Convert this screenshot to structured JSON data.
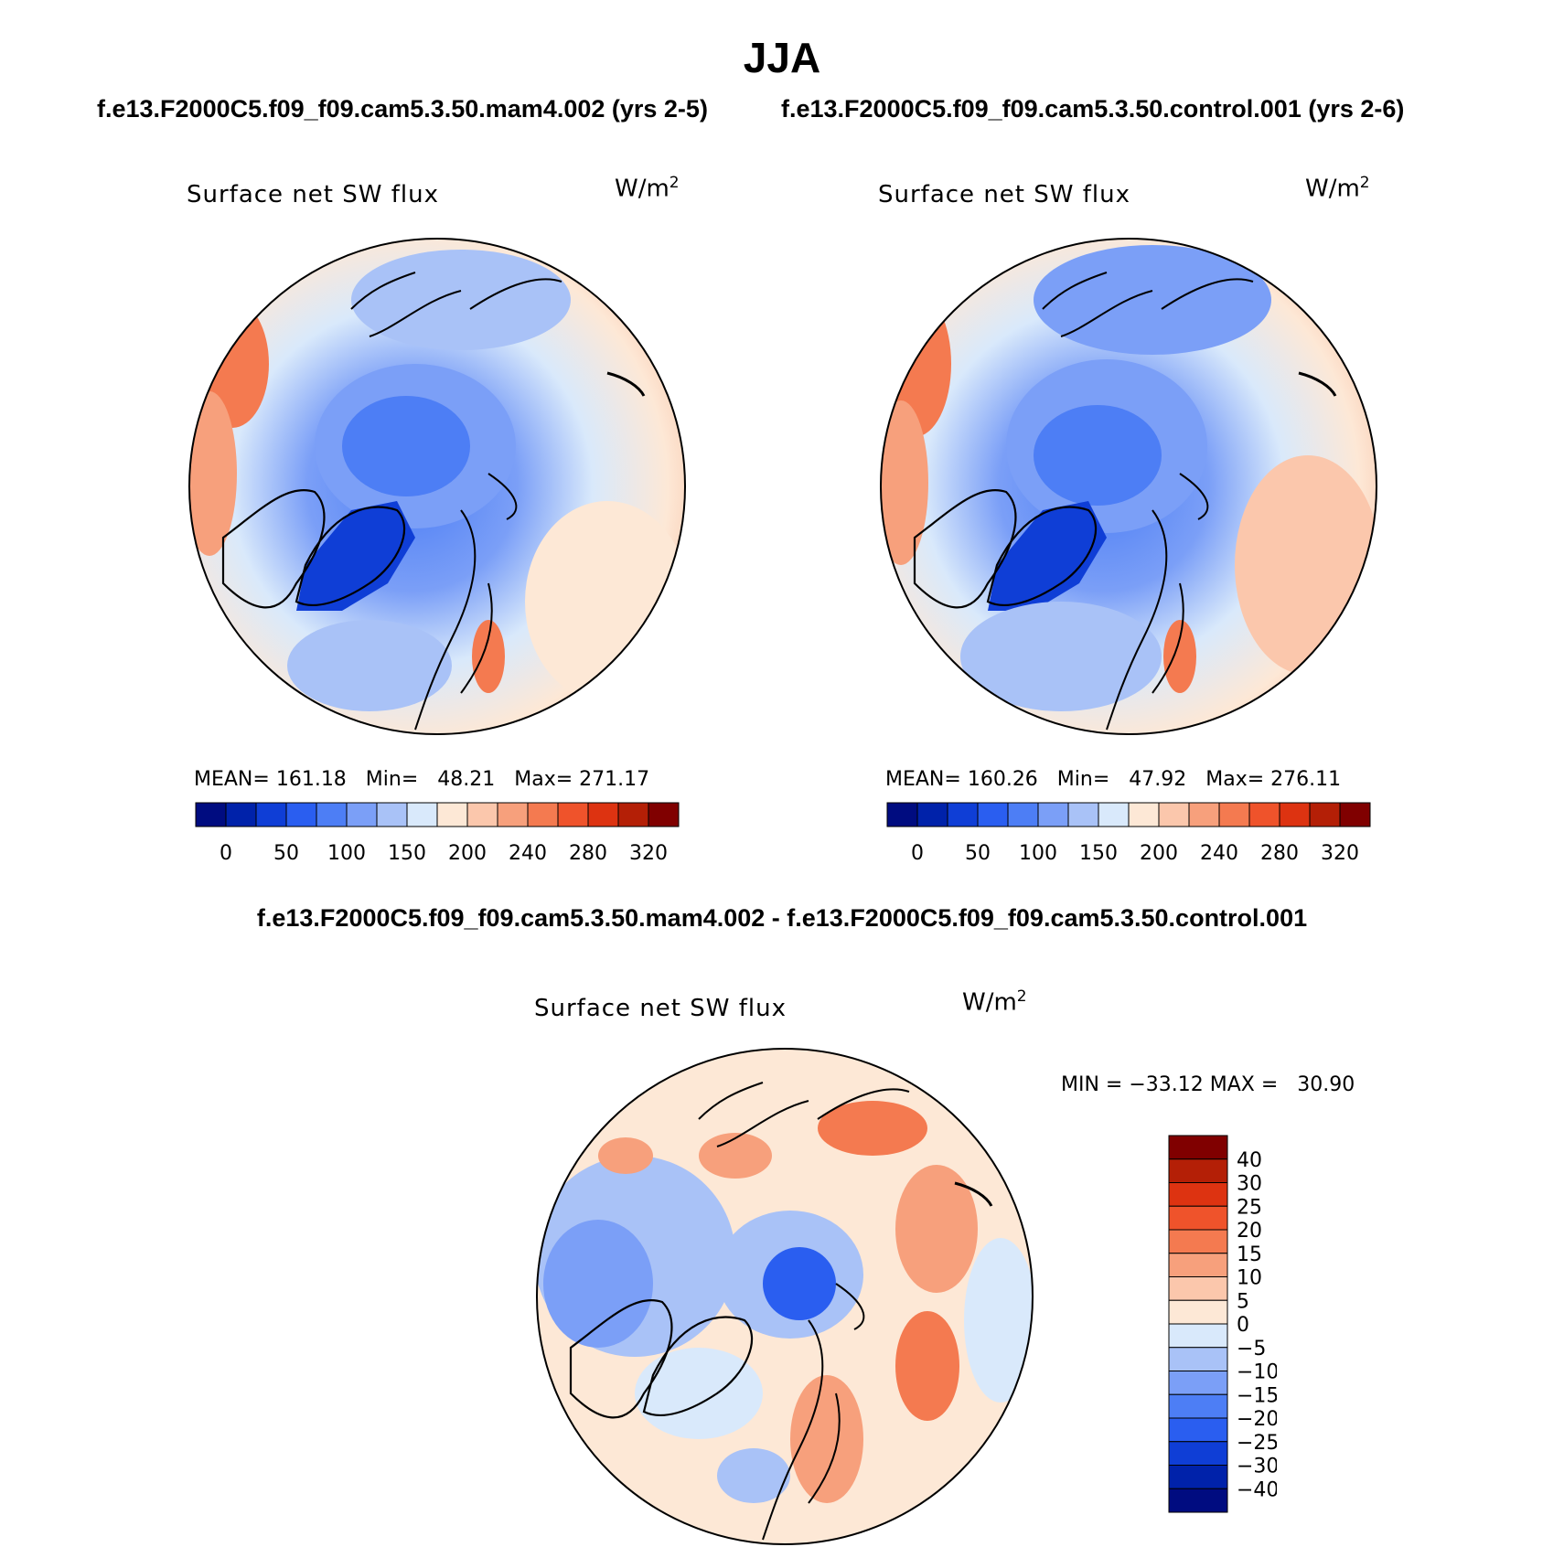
{
  "season_title": "JJA",
  "subtitle_left": "f.e13.F2000C5.f09_f09.cam5.3.50.mam4.002 (yrs 2-5)",
  "subtitle_right": "f.e13.F2000C5.f09_f09.cam5.3.50.control.001 (yrs 2-6)",
  "diff_title": "f.e13.F2000C5.f09_f09.cam5.3.50.mam4.002 - f.e13.F2000C5.f09_f09.cam5.3.50.control.001",
  "chart_data": [
    {
      "type": "heatmap",
      "projection": "north-polar-stereographic",
      "variable": "Surface net SW flux",
      "units_base": "W/m",
      "units_exp": "2",
      "stats": {
        "mean_label": "MEAN=",
        "mean": "161.18",
        "min_label": "Min=",
        "min": "48.21",
        "max_label": "Max=",
        "max": "271.17"
      },
      "colorbar": {
        "orientation": "horizontal",
        "tick_labels": [
          "0",
          "50",
          "100",
          "150",
          "200",
          "240",
          "280",
          "320"
        ],
        "colors": [
          "#000c80",
          "#0022aa",
          "#0f3ed6",
          "#2a5ef0",
          "#4d7ef5",
          "#7b9ff7",
          "#a9c2f7",
          "#d9e9fb",
          "#fde8d6",
          "#fbc7ac",
          "#f7a07c",
          "#f47a50",
          "#ef532b",
          "#dd3311",
          "#b41f06",
          "#800000"
        ]
      }
    },
    {
      "type": "heatmap",
      "projection": "north-polar-stereographic",
      "variable": "Surface net SW flux",
      "units_base": "W/m",
      "units_exp": "2",
      "stats": {
        "mean_label": "MEAN=",
        "mean": "160.26",
        "min_label": "Min=",
        "min": "47.92",
        "max_label": "Max=",
        "max": "276.11"
      },
      "colorbar": {
        "orientation": "horizontal",
        "tick_labels": [
          "0",
          "50",
          "100",
          "150",
          "200",
          "240",
          "280",
          "320"
        ],
        "colors": [
          "#000c80",
          "#0022aa",
          "#0f3ed6",
          "#2a5ef0",
          "#4d7ef5",
          "#7b9ff7",
          "#a9c2f7",
          "#d9e9fb",
          "#fde8d6",
          "#fbc7ac",
          "#f7a07c",
          "#f47a50",
          "#ef532b",
          "#dd3311",
          "#b41f06",
          "#800000"
        ]
      }
    },
    {
      "type": "heatmap",
      "projection": "north-polar-stereographic",
      "variable": "Surface net SW flux",
      "units_base": "W/m",
      "units_exp": "2",
      "stats_text": "MIN = −33.12 MAX =   30.90",
      "colorbar": {
        "orientation": "vertical",
        "tick_labels": [
          "40",
          "30",
          "25",
          "20",
          "15",
          "10",
          "5",
          "0",
          "−5",
          "−10",
          "−15",
          "−20",
          "−25",
          "−30",
          "−40"
        ],
        "colors": [
          "#800000",
          "#b41f06",
          "#dd3311",
          "#ef532b",
          "#f47a50",
          "#f7a07c",
          "#fbc7ac",
          "#fde8d6",
          "#d9e9fb",
          "#a9c2f7",
          "#7b9ff7",
          "#4d7ef5",
          "#2a5ef0",
          "#0f3ed6",
          "#0022aa",
          "#000c80"
        ]
      }
    }
  ]
}
